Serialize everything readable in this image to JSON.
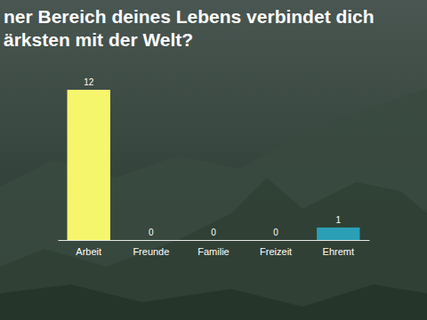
{
  "chart_data": {
    "type": "bar",
    "title": "ner Bereich deines Lebens verbindet dich ärksten mit der Welt?",
    "categories": [
      "Arbeit",
      "Freunde",
      "Familie",
      "Freizeit",
      "Ehremt"
    ],
    "values": [
      12,
      0,
      0,
      0,
      1
    ],
    "colors": [
      "#f6f66c",
      "#c8e27a",
      "#8fd08c",
      "#5cb99c",
      "#2a9fb6"
    ],
    "ylim": [
      0,
      12
    ],
    "data_labels": true,
    "tick_labels": "x",
    "grid": false
  }
}
